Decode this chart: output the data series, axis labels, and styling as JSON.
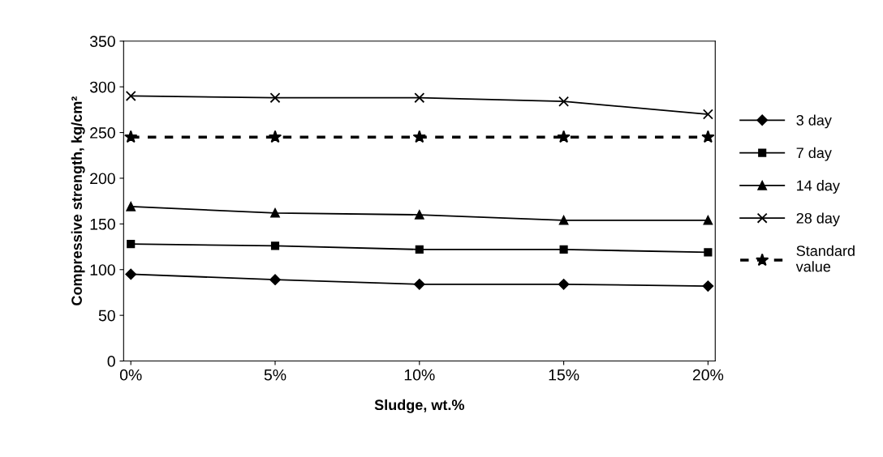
{
  "chart_data": {
    "type": "line",
    "xlabel": "Sludge, wt.%",
    "ylabel": "Compressive strength, kg/cm²",
    "categories": [
      "0%",
      "5%",
      "10%",
      "15%",
      "20%"
    ],
    "ylim": [
      0,
      350
    ],
    "yticks": [
      0,
      50,
      100,
      150,
      200,
      250,
      300,
      350
    ],
    "grid": false,
    "legend": "right",
    "series": [
      {
        "name": "3 day",
        "color": "#000000",
        "marker": "diamond",
        "line_style": "solid",
        "values": [
          95,
          89,
          84,
          84,
          82
        ]
      },
      {
        "name": "7 day",
        "color": "#000000",
        "marker": "square",
        "line_style": "solid",
        "values": [
          128,
          126,
          122,
          122,
          119
        ]
      },
      {
        "name": "14 day",
        "color": "#000000",
        "marker": "triangle",
        "line_style": "solid",
        "values": [
          169,
          162,
          160,
          154,
          154
        ]
      },
      {
        "name": "28 day",
        "color": "#000000",
        "marker": "cross",
        "line_style": "solid",
        "values": [
          290,
          288,
          288,
          284,
          270
        ]
      },
      {
        "name": "Standard\nvalue",
        "color": "#000000",
        "marker": "star",
        "line_style": "dashed",
        "values": [
          245,
          245,
          245,
          245,
          245
        ]
      }
    ]
  }
}
